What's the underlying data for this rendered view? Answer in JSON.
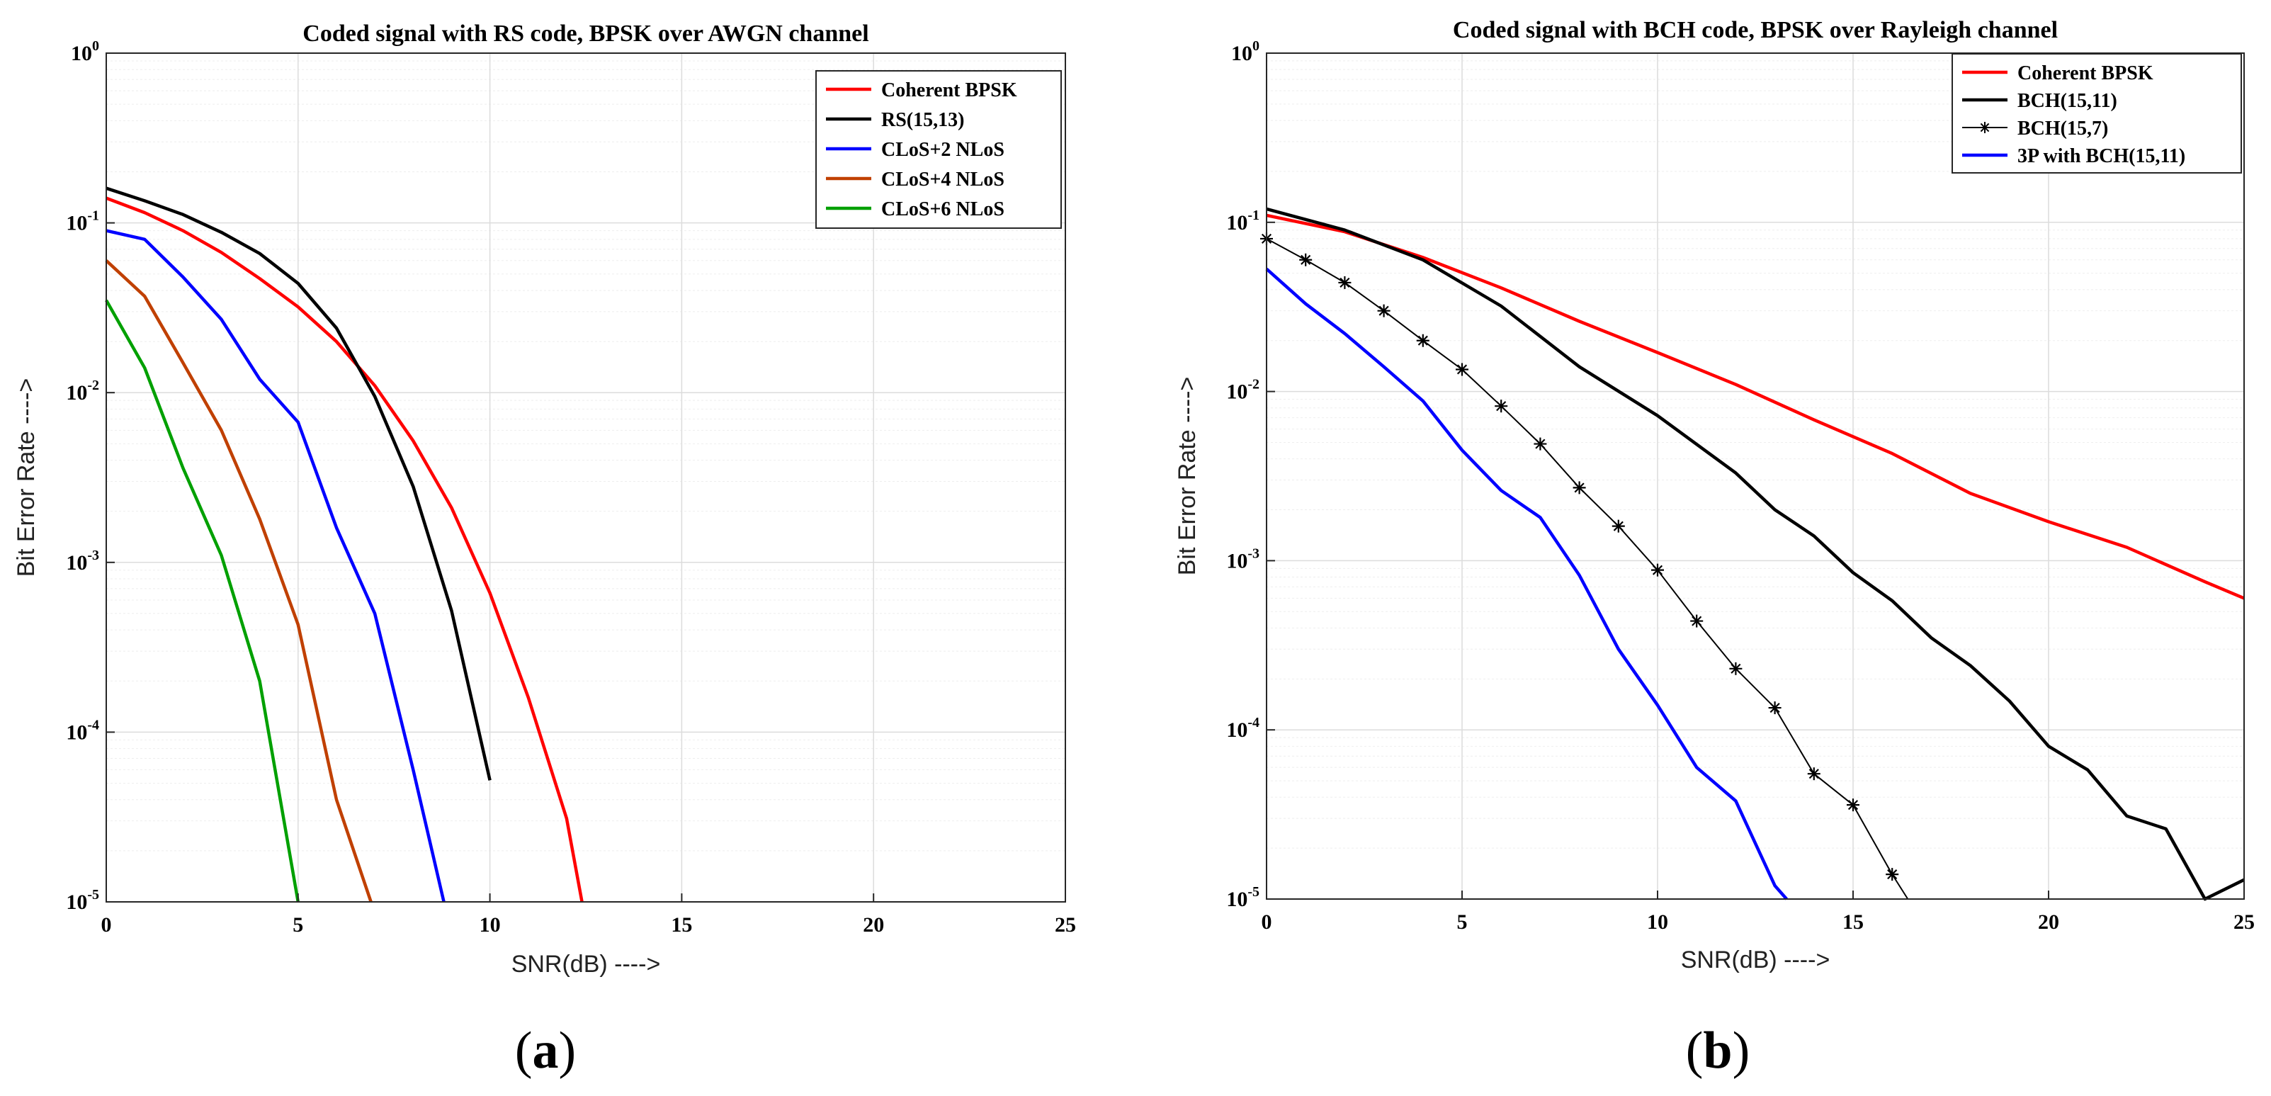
{
  "chart_data": [
    {
      "type": "line",
      "title": "Coded signal with RS code, BPSK over AWGN channel",
      "xlabel": "SNR(dB) ---->",
      "ylabel": "Bit Error Rate ---->",
      "xlim": [
        0,
        25
      ],
      "ylim": [
        1e-05,
        1
      ],
      "yscale": "log",
      "grid": true,
      "legend_position": "top-right",
      "x_ticks": [
        "0",
        "5",
        "10",
        "15",
        "20",
        "25"
      ],
      "y_ticks": [
        {
          "base": "10",
          "exp": "-5"
        },
        {
          "base": "10",
          "exp": "-4"
        },
        {
          "base": "10",
          "exp": "-3"
        },
        {
          "base": "10",
          "exp": "-2"
        },
        {
          "base": "10",
          "exp": "-1"
        },
        {
          "base": "10",
          "exp": "0"
        }
      ],
      "panel_label": "(a)",
      "series": [
        {
          "name": "Coherent BPSK",
          "color": "#ff0000",
          "x": [
            0,
            1,
            2,
            3,
            4,
            5,
            6,
            7,
            8,
            9,
            10,
            11,
            12,
            12.4
          ],
          "y": [
            0.14,
            0.115,
            0.09,
            0.067,
            0.047,
            0.032,
            0.02,
            0.011,
            0.0052,
            0.0021,
            0.00066,
            0.00016,
            3.1e-05,
            1e-05
          ]
        },
        {
          "name": "RS(15,13)",
          "color": "#000000",
          "x": [
            0,
            1,
            2,
            3,
            4,
            5,
            6,
            7,
            8,
            9,
            10
          ],
          "y": [
            0.16,
            0.135,
            0.112,
            0.088,
            0.066,
            0.044,
            0.024,
            0.0095,
            0.0028,
            0.00052,
            5.2e-05
          ]
        },
        {
          "name": "CLoS+2 NLoS",
          "color": "#0000ff",
          "x": [
            0,
            1,
            2,
            3,
            4,
            5,
            6,
            7,
            8,
            8.8
          ],
          "y": [
            0.09,
            0.08,
            0.048,
            0.027,
            0.012,
            0.0067,
            0.0016,
            0.0005,
            6e-05,
            1e-05
          ]
        },
        {
          "name": "CLoS+4 NLoS",
          "color": "#c04000",
          "x": [
            0,
            1,
            2,
            3,
            4,
            5,
            6,
            6.9
          ],
          "y": [
            0.06,
            0.037,
            0.015,
            0.006,
            0.0018,
            0.00043,
            4e-05,
            1e-05
          ]
        },
        {
          "name": "CLoS+6 NLoS",
          "color": "#00a000",
          "x": [
            0,
            1,
            2,
            3,
            4,
            5
          ],
          "y": [
            0.035,
            0.014,
            0.0036,
            0.0011,
            0.0002,
            1e-05
          ]
        }
      ]
    },
    {
      "type": "line",
      "title": "Coded signal with BCH code, BPSK over Rayleigh channel",
      "xlabel": "SNR(dB) ---->",
      "ylabel": "Bit Error Rate ---->",
      "xlim": [
        0,
        25
      ],
      "ylim": [
        1e-05,
        1
      ],
      "yscale": "log",
      "grid": true,
      "legend_position": "top-right",
      "x_ticks": [
        "0",
        "5",
        "10",
        "15",
        "20",
        "25"
      ],
      "y_ticks": [
        {
          "base": "10",
          "exp": "-5"
        },
        {
          "base": "10",
          "exp": "-4"
        },
        {
          "base": "10",
          "exp": "-3"
        },
        {
          "base": "10",
          "exp": "-2"
        },
        {
          "base": "10",
          "exp": "-1"
        },
        {
          "base": "10",
          "exp": "0"
        }
      ],
      "panel_label": "(b)",
      "series": [
        {
          "name": "Coherent BPSK",
          "color": "#ff0000",
          "marker": "none",
          "x": [
            0,
            2,
            4,
            6,
            8,
            10,
            12,
            14,
            16,
            18,
            20,
            22,
            24,
            25
          ],
          "y": [
            0.11,
            0.088,
            0.062,
            0.041,
            0.026,
            0.017,
            0.011,
            0.0068,
            0.0043,
            0.0025,
            0.0017,
            0.0012,
            0.00075,
            0.0006
          ]
        },
        {
          "name": "BCH(15,11)",
          "color": "#000000",
          "marker": "none",
          "x": [
            0,
            2,
            4,
            6,
            8,
            10,
            12,
            13,
            14,
            15,
            16,
            17,
            18,
            19,
            20,
            21,
            22,
            23,
            24,
            25
          ],
          "y": [
            0.12,
            0.09,
            0.06,
            0.032,
            0.014,
            0.0072,
            0.0033,
            0.002,
            0.0014,
            0.00085,
            0.00058,
            0.00035,
            0.00024,
            0.000148,
            8e-05,
            5.8e-05,
            3.1e-05,
            2.6e-05,
            1e-05,
            1.3e-05
          ]
        },
        {
          "name": "BCH(15,7)",
          "color": "#000000",
          "marker": "star",
          "x": [
            0,
            1,
            2,
            3,
            4,
            5,
            6,
            7,
            8,
            9,
            10,
            11,
            12,
            13,
            14,
            15,
            16,
            16.4
          ],
          "y": [
            0.08,
            0.06,
            0.044,
            0.03,
            0.02,
            0.0135,
            0.0082,
            0.0049,
            0.0027,
            0.0016,
            0.00088,
            0.00044,
            0.00023,
            0.000135,
            5.5e-05,
            3.6e-05,
            1.4e-05,
            1e-05
          ]
        },
        {
          "name": "3P with BCH(15,11)",
          "color": "#0000ff",
          "marker": "none",
          "x": [
            0,
            1,
            2,
            3,
            4,
            5,
            6,
            7,
            8,
            9,
            10,
            11,
            12,
            13,
            13.3
          ],
          "y": [
            0.053,
            0.033,
            0.022,
            0.014,
            0.0088,
            0.0045,
            0.0026,
            0.0018,
            0.00082,
            0.0003,
            0.00014,
            6e-05,
            3.8e-05,
            1.2e-05,
            1e-05
          ]
        }
      ]
    }
  ]
}
